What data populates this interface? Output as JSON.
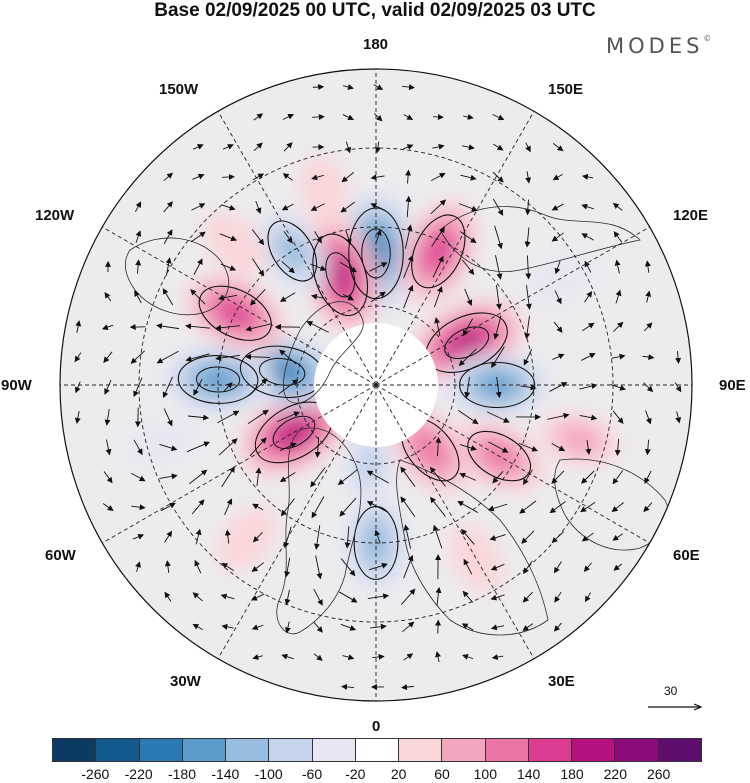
{
  "title": "Base 02/09/2025 00 UTC, valid 02/09/2025 03 UTC",
  "brand": "MODES",
  "brand_mark": "©",
  "longitude_labels": {
    "top": "180",
    "bottom": "0",
    "left": "90W",
    "right": "90E",
    "nw_upper": "150W",
    "nw_lower": "120W",
    "ne_upper": "150E",
    "ne_lower": "120E",
    "sw_upper": "60W",
    "sw_lower": "30W",
    "se_upper": "60E",
    "se_lower": "30E"
  },
  "wind_scale": {
    "value": "30"
  },
  "colorbar": {
    "colors": [
      "#0b3a63",
      "#135a8f",
      "#2a7ab4",
      "#5c9ccc",
      "#96bcdf",
      "#c5d3ea",
      "#e7e7f3",
      "#ffffff",
      "#fbd6d9",
      "#f3a6be",
      "#ec74a6",
      "#dc3d93",
      "#b5117f",
      "#8c0a7a",
      "#5d0d6e"
    ],
    "tick_labels": [
      "-260",
      "-220",
      "-180",
      "-140",
      "-100",
      "-60",
      "-20",
      "20",
      "60",
      "100",
      "140",
      "180",
      "220",
      "260"
    ]
  },
  "anomaly_features": [
    {
      "sign": "negative",
      "value": -230,
      "lon": 180,
      "colat": 25
    },
    {
      "sign": "positive",
      "value": 170,
      "lon": 155,
      "colat": 28
    },
    {
      "sign": "positive",
      "value": 210,
      "lon": 115,
      "colat": 19
    },
    {
      "sign": "negative",
      "value": -160,
      "lon": 90,
      "colat": 23
    },
    {
      "sign": "positive",
      "value": 80,
      "lon": 75,
      "colat": 40
    },
    {
      "sign": "positive",
      "value": 150,
      "lon": 40,
      "colat": 16
    },
    {
      "sign": "positive",
      "value": 130,
      "lon": 60,
      "colat": 27
    },
    {
      "sign": "negative",
      "value": -150,
      "lon": 0,
      "colat": 30
    },
    {
      "sign": "negative",
      "value": -90,
      "lon": 355,
      "colat": 15
    },
    {
      "sign": "positive",
      "value": 200,
      "lon": 300,
      "colat": 18
    },
    {
      "sign": "negative",
      "value": -200,
      "lon": 262,
      "colat": 18
    },
    {
      "sign": "negative",
      "value": -180,
      "lon": 268,
      "colat": 30
    },
    {
      "sign": "positive",
      "value": 170,
      "lon": 243,
      "colat": 30
    },
    {
      "sign": "positive",
      "value": 200,
      "lon": 198,
      "colat": 22
    },
    {
      "sign": "negative",
      "value": -120,
      "lon": 212,
      "colat": 30
    },
    {
      "sign": "positive",
      "value": 60,
      "lon": 195,
      "colat": 38
    },
    {
      "sign": "positive",
      "value": 60,
      "lon": 225,
      "colat": 38
    },
    {
      "sign": "positive",
      "value": 60,
      "lon": 320,
      "colat": 38
    },
    {
      "sign": "positive",
      "value": 60,
      "lon": 30,
      "colat": 38
    },
    {
      "sign": "negative",
      "value": -60,
      "lon": 120,
      "colat": 40
    },
    {
      "sign": "negative",
      "value": -60,
      "lon": 285,
      "colat": 42
    }
  ]
}
